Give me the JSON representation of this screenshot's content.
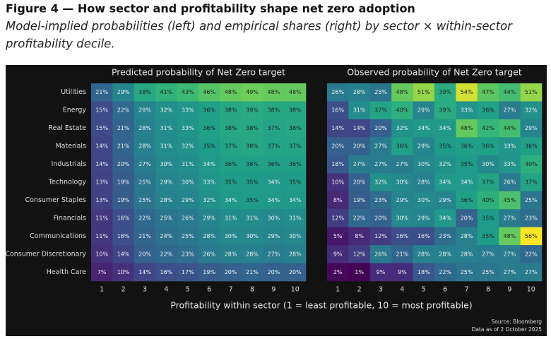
{
  "figure": {
    "title": "Figure 4 — How sector and profitability shape net zero adoption",
    "subtitle": [
      "Model-implied probabilities (left) and empirical shares (right) by sector × within-sector",
      "profitability decile."
    ],
    "xlabel": "Profitability within sector (1 = least profitable, 10 = most profitable)",
    "source": [
      "Source: Bloomberg",
      "Data as of 2 October 2025"
    ]
  },
  "chart_data": [
    {
      "type": "heatmap",
      "title": "Predicted probability of Net Zero target",
      "colormap": "viridis",
      "categories": [
        "1",
        "2",
        "3",
        "4",
        "5",
        "6",
        "7",
        "8",
        "9",
        "10"
      ],
      "rows": [
        "Utilities",
        "Energy",
        "Real Estate",
        "Materials",
        "Industrials",
        "Technology",
        "Consumer Staples",
        "Financials",
        "Communications",
        "Consumer Discretionary",
        "Health Care"
      ],
      "values": [
        [
          21,
          29,
          38,
          41,
          43,
          46,
          48,
          49,
          48,
          48
        ],
        [
          15,
          22,
          29,
          32,
          33,
          36,
          38,
          39,
          38,
          38
        ],
        [
          15,
          21,
          28,
          31,
          33,
          36,
          38,
          38,
          37,
          38
        ],
        [
          14,
          21,
          28,
          31,
          32,
          35,
          37,
          38,
          37,
          37
        ],
        [
          14,
          20,
          27,
          30,
          31,
          34,
          36,
          36,
          36,
          36
        ],
        [
          13,
          19,
          25,
          29,
          30,
          33,
          35,
          35,
          34,
          35
        ],
        [
          13,
          19,
          25,
          28,
          29,
          32,
          34,
          35,
          34,
          34
        ],
        [
          11,
          16,
          22,
          25,
          26,
          29,
          31,
          31,
          30,
          31
        ],
        [
          11,
          16,
          21,
          24,
          25,
          28,
          30,
          30,
          29,
          30
        ],
        [
          10,
          14,
          20,
          22,
          23,
          26,
          28,
          28,
          27,
          28
        ],
        [
          7,
          10,
          14,
          16,
          17,
          19,
          20,
          21,
          20,
          20
        ]
      ],
      "value_labels": [
        [
          "21%",
          "29%",
          "38%",
          "41%",
          "43%",
          "46%",
          "48%",
          "49%",
          "48%",
          "48%"
        ],
        [
          "15%",
          "22%",
          "29%",
          "32%",
          "33%",
          "36%",
          "38%",
          "39%",
          "38%",
          "38%"
        ],
        [
          "15%",
          "21%",
          "28%",
          "31%",
          "33%",
          "36%",
          "38%",
          "38%",
          "37%",
          "38%"
        ],
        [
          "14%",
          "21%",
          "28%",
          "31%",
          "32%",
          "35%",
          "37%",
          "38%",
          "37%",
          "37%"
        ],
        [
          "14%",
          "20%",
          "27%",
          "30%",
          "31%",
          "34%",
          "36%",
          "36%",
          "36%",
          "36%"
        ],
        [
          "13%",
          "19%",
          "25%",
          "29%",
          "30%",
          "33%",
          "35%",
          "35%",
          "34%",
          "35%"
        ],
        [
          "13%",
          "19%",
          "25%",
          "28%",
          "29%",
          "32%",
          "34%",
          "35%",
          "34%",
          "34%"
        ],
        [
          "11%",
          "16%",
          "22%",
          "25%",
          "26%",
          "29%",
          "31%",
          "31%",
          "30%",
          "31%"
        ],
        [
          "11%",
          "16%",
          "21%",
          "24%",
          "25%",
          "28%",
          "30%",
          "30%",
          "29%",
          "30%"
        ],
        [
          "10%",
          "14%",
          "20%",
          "22%",
          "23%",
          "26%",
          "28%",
          "28%",
          "27%",
          "28%"
        ],
        [
          "7%",
          "10%",
          "14%",
          "16%",
          "17%",
          "19%",
          "20%",
          "21%",
          "20%",
          "20%"
        ]
      ]
    },
    {
      "type": "heatmap",
      "title": "Observed probability of Net Zero target",
      "colormap": "viridis",
      "categories": [
        "1",
        "2",
        "3",
        "4",
        "5",
        "6",
        "7",
        "8",
        "9",
        "10"
      ],
      "values": [
        [
          26,
          28,
          25,
          48,
          51,
          39,
          54,
          47,
          44,
          51
        ],
        [
          16,
          31,
          37,
          40,
          29,
          39,
          33,
          36,
          27,
          32
        ],
        [
          14,
          14,
          20,
          32,
          34,
          34,
          48,
          42,
          44,
          29
        ],
        [
          20,
          20,
          27,
          36,
          29,
          35,
          36,
          36,
          33,
          36
        ],
        [
          18,
          27,
          27,
          27,
          30,
          32,
          35,
          30,
          33,
          40
        ],
        [
          10,
          20,
          32,
          30,
          28,
          34,
          34,
          37,
          26,
          37
        ],
        [
          8,
          19,
          23,
          29,
          30,
          29,
          36,
          40,
          45,
          25
        ],
        [
          12,
          22,
          20,
          30,
          29,
          34,
          20,
          35,
          27,
          23
        ],
        [
          5,
          8,
          12,
          16,
          16,
          23,
          28,
          35,
          48,
          56
        ],
        [
          9,
          12,
          26,
          21,
          28,
          28,
          28,
          27,
          27,
          22
        ],
        [
          2,
          1,
          9,
          9,
          18,
          22,
          25,
          25,
          27,
          27
        ]
      ],
      "value_labels": [
        [
          "26%",
          "28%",
          "25%",
          "48%",
          "51%",
          "39%",
          "54%",
          "47%",
          "44%",
          "51%"
        ],
        [
          "16%",
          "31%",
          "37%",
          "40%",
          "29%",
          "39%",
          "33%",
          "36%",
          "27%",
          "32%"
        ],
        [
          "14%",
          "14%",
          "20%",
          "32%",
          "34%",
          "34%",
          "48%",
          "42%",
          "44%",
          "29%"
        ],
        [
          "20%",
          "20%",
          "27%",
          "36%",
          "29%",
          "35%",
          "36%",
          "36%",
          "33%",
          "36%"
        ],
        [
          "18%",
          "27%",
          "27%",
          "27%",
          "30%",
          "32%",
          "35%",
          "30%",
          "33%",
          "40%"
        ],
        [
          "10%",
          "20%",
          "32%",
          "30%",
          "28%",
          "34%",
          "34%",
          "37%",
          "26%",
          "37%"
        ],
        [
          "8%",
          "19%",
          "23%",
          "29%",
          "30%",
          "29%",
          "36%",
          "40%",
          "45%",
          "25%"
        ],
        [
          "12%",
          "22%",
          "20%",
          "30%",
          "29%",
          "34%",
          "20%",
          "35%",
          "27%",
          "23%"
        ],
        [
          "5%",
          "8%",
          "12%",
          "16%",
          "16%",
          "23%",
          "28%",
          "35%",
          "48%",
          "56%"
        ],
        [
          "9%",
          "12%",
          "26%",
          "21%",
          "28%",
          "28%",
          "28%",
          "27%",
          "27%",
          "22%"
        ],
        [
          "2%",
          "1%",
          "9%",
          "9%",
          "18%",
          "22%",
          "25%",
          "25%",
          "27%",
          "27%"
        ]
      ]
    }
  ]
}
